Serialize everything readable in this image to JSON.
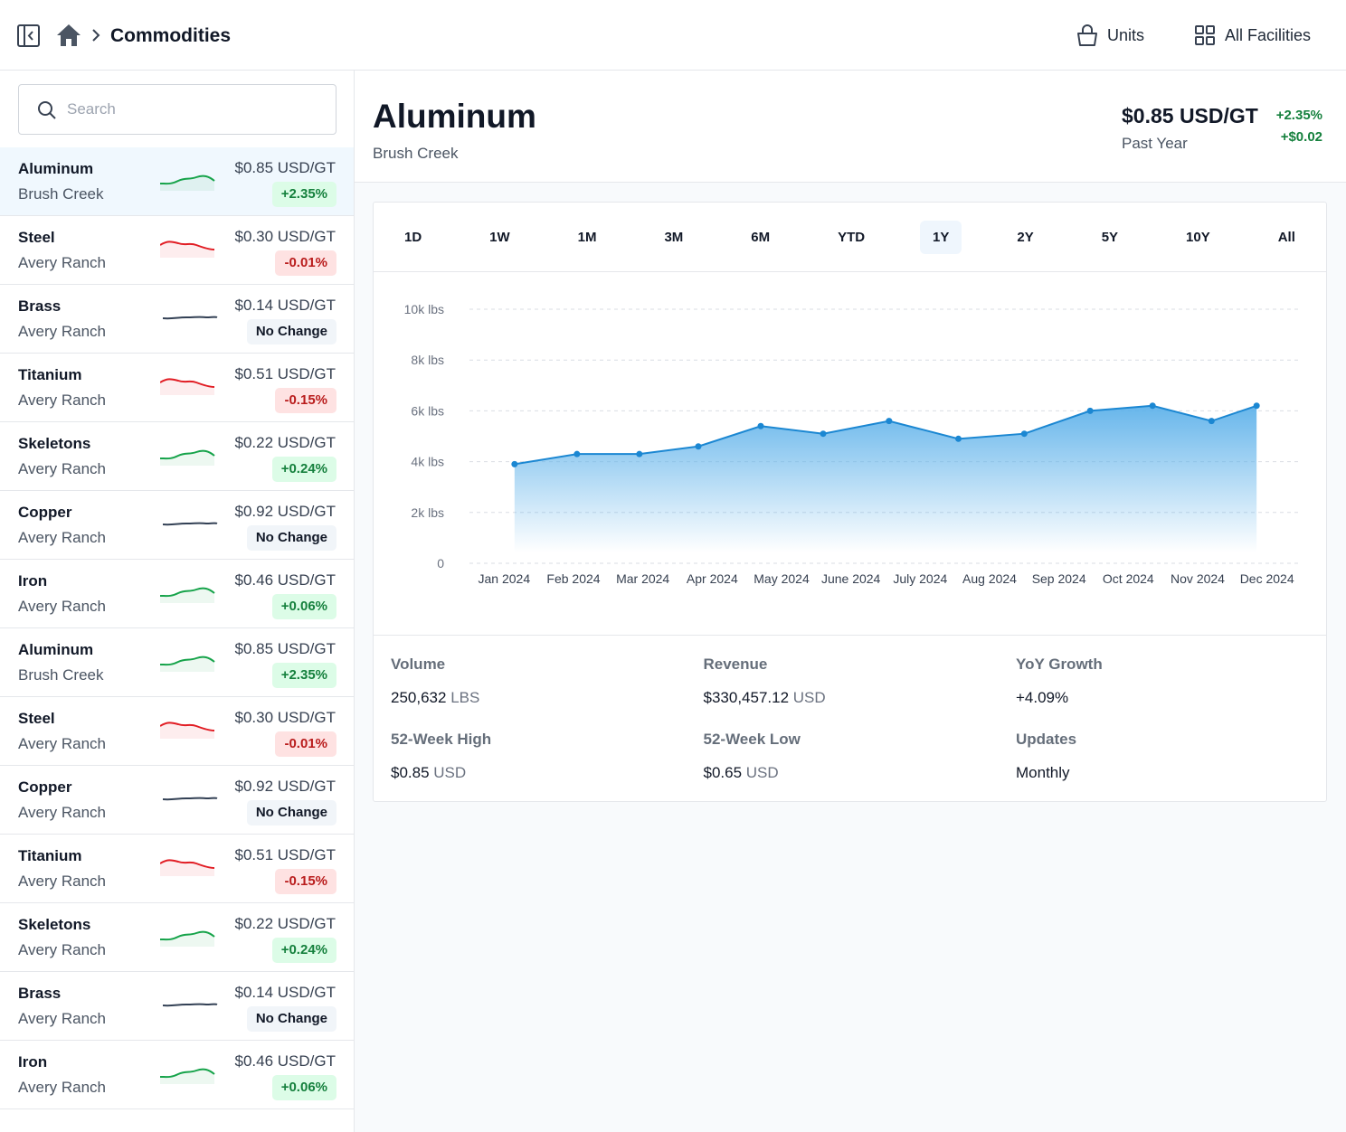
{
  "header": {
    "breadcrumb": "Commodities",
    "units": "Units",
    "facilities": "All Facilities"
  },
  "sidebar": {
    "search_placeholder": "Search",
    "selected": 0,
    "items": [
      {
        "name": "Aluminum",
        "location": "Brush Creek",
        "price": "$0.85 USD/GT",
        "change": "+2.35%"
      },
      {
        "name": "Steel",
        "location": "Avery Ranch",
        "price": "$0.30 USD/GT",
        "change": "-0.01%"
      },
      {
        "name": "Brass",
        "location": "Avery Ranch",
        "price": "$0.14 USD/GT",
        "change": "No Change"
      },
      {
        "name": "Titanium",
        "location": "Avery Ranch",
        "price": "$0.51 USD/GT",
        "change": "-0.15%"
      },
      {
        "name": "Skeletons",
        "location": "Avery Ranch",
        "price": "$0.22 USD/GT",
        "change": "+0.24%"
      },
      {
        "name": "Copper",
        "location": "Avery Ranch",
        "price": "$0.92 USD/GT",
        "change": "No Change"
      },
      {
        "name": "Iron",
        "location": "Avery Ranch",
        "price": "$0.46 USD/GT",
        "change": "+0.06%"
      },
      {
        "name": "Aluminum",
        "location": "Brush Creek",
        "price": "$0.85 USD/GT",
        "change": "+2.35%"
      },
      {
        "name": "Steel",
        "location": "Avery Ranch",
        "price": "$0.30 USD/GT",
        "change": "-0.01%"
      },
      {
        "name": "Copper",
        "location": "Avery Ranch",
        "price": "$0.92 USD/GT",
        "change": "No Change"
      },
      {
        "name": "Titanium",
        "location": "Avery Ranch",
        "price": "$0.51 USD/GT",
        "change": "-0.15%"
      },
      {
        "name": "Skeletons",
        "location": "Avery Ranch",
        "price": "$0.22 USD/GT",
        "change": "+0.24%"
      },
      {
        "name": "Brass",
        "location": "Avery Ranch",
        "price": "$0.14 USD/GT",
        "change": "No Change"
      },
      {
        "name": "Iron",
        "location": "Avery Ranch",
        "price": "$0.46 USD/GT",
        "change": "+0.06%"
      }
    ]
  },
  "detail": {
    "title": "Aluminum",
    "subtitle": "Brush Creek",
    "price": "$0.85 USD/GT",
    "period": "Past Year",
    "change_pct": "+2.35%",
    "change_abs": "+$0.02",
    "ranges": [
      "1D",
      "1W",
      "1M",
      "3M",
      "6M",
      "YTD",
      "1Y",
      "2Y",
      "5Y",
      "10Y",
      "All"
    ],
    "selected_range": 6,
    "stats": [
      {
        "label": "Volume",
        "value": "250,632",
        "unit": "LBS"
      },
      {
        "label": "Revenue",
        "value": "$330,457.12",
        "unit": "USD"
      },
      {
        "label": "YoY Growth",
        "value": "+4.09%"
      },
      {
        "label": "52-Week High",
        "value": "$0.85",
        "unit": "USD"
      },
      {
        "label": "52-Week Low",
        "value": "$0.65",
        "unit": "USD"
      },
      {
        "label": "Updates",
        "value": "Monthly"
      }
    ]
  },
  "chart_data": {
    "type": "area",
    "color": "#1b87d2",
    "x": [
      0.15,
      1.05,
      1.95,
      2.8,
      3.7,
      4.6,
      5.55,
      6.55,
      7.5,
      8.45,
      9.35,
      10.2,
      10.85
    ],
    "values": [
      3900,
      4300,
      4300,
      4600,
      5400,
      5100,
      5600,
      4900,
      5100,
      6000,
      6200,
      5600,
      6200
    ],
    "xlim": [
      -0.5,
      11.5
    ],
    "xticks": [
      {
        "value": 0,
        "label": "Jan 2024"
      },
      {
        "value": 1,
        "label": "Feb 2024"
      },
      {
        "value": 2,
        "label": "Mar 2024"
      },
      {
        "value": 3,
        "label": "Apr 2024"
      },
      {
        "value": 4,
        "label": "May 2024"
      },
      {
        "value": 5,
        "label": "June 2024"
      },
      {
        "value": 6,
        "label": "July 2024"
      },
      {
        "value": 7,
        "label": "Aug 2024"
      },
      {
        "value": 8,
        "label": "Sep 2024"
      },
      {
        "value": 9,
        "label": "Oct 2024"
      },
      {
        "value": 10,
        "label": "Nov 2024"
      },
      {
        "value": 11,
        "label": "Dec 2024"
      }
    ],
    "ylim": [
      0,
      10000
    ],
    "yticks": [
      0,
      {
        "value": 2000,
        "label": "2k lbs"
      },
      {
        "value": 4000,
        "label": "4k lbs"
      },
      {
        "value": 6000,
        "label": "6k lbs"
      },
      {
        "value": 8000,
        "label": "8k lbs"
      },
      {
        "value": 10000,
        "label": "10k lbs"
      }
    ],
    "grid": true
  }
}
